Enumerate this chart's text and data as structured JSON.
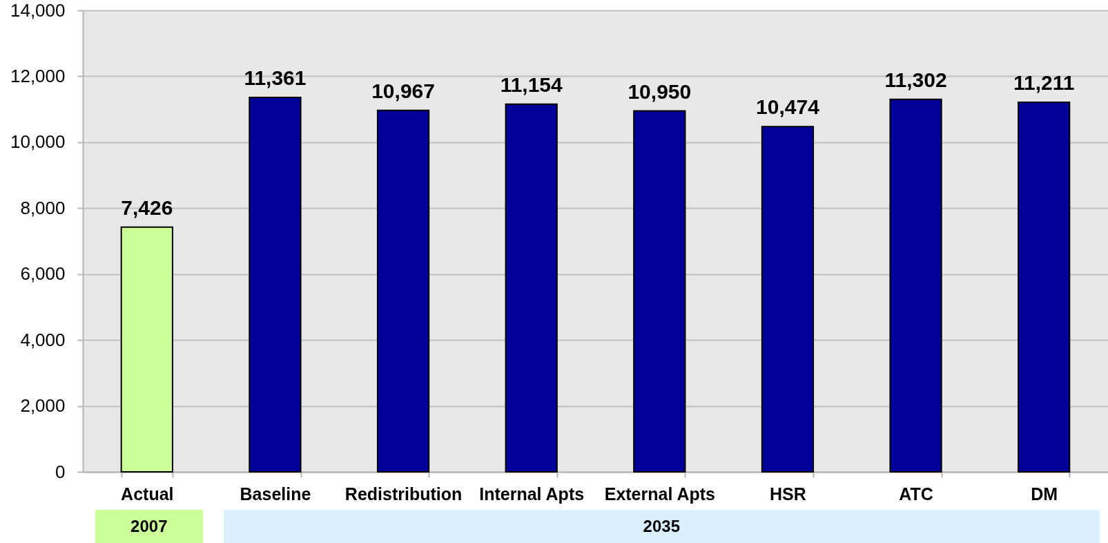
{
  "chart_data": {
    "type": "bar",
    "categories": [
      "Actual",
      "Baseline",
      "Redistribution",
      "Internal Apts",
      "External Apts",
      "HSR",
      "ATC",
      "DM"
    ],
    "values": [
      7426,
      11361,
      10967,
      11154,
      10950,
      10474,
      11302,
      11211
    ],
    "value_labels": [
      "7,426",
      "11,361",
      "10,967",
      "11,154",
      "10,950",
      "10,474",
      "11,302",
      "11,211"
    ],
    "colors": [
      "#ccff99",
      "#000099",
      "#000099",
      "#000099",
      "#000099",
      "#000099",
      "#000099",
      "#000099"
    ],
    "ylim": [
      0,
      14000
    ],
    "yticks": [
      0,
      {
        "value": 2000,
        "label": "2,000"
      },
      {
        "value": 4000,
        "label": "4,000"
      },
      {
        "value": 6000,
        "label": "6,000"
      },
      {
        "value": 8000,
        "label": "8,000"
      },
      {
        "value": 10000,
        "label": "10,000"
      },
      {
        "value": 12000,
        "label": "12,000"
      },
      {
        "value": 14000,
        "label": "14,000"
      }
    ],
    "grid": "y",
    "annotations": [
      "2007",
      "2035"
    ]
  }
}
